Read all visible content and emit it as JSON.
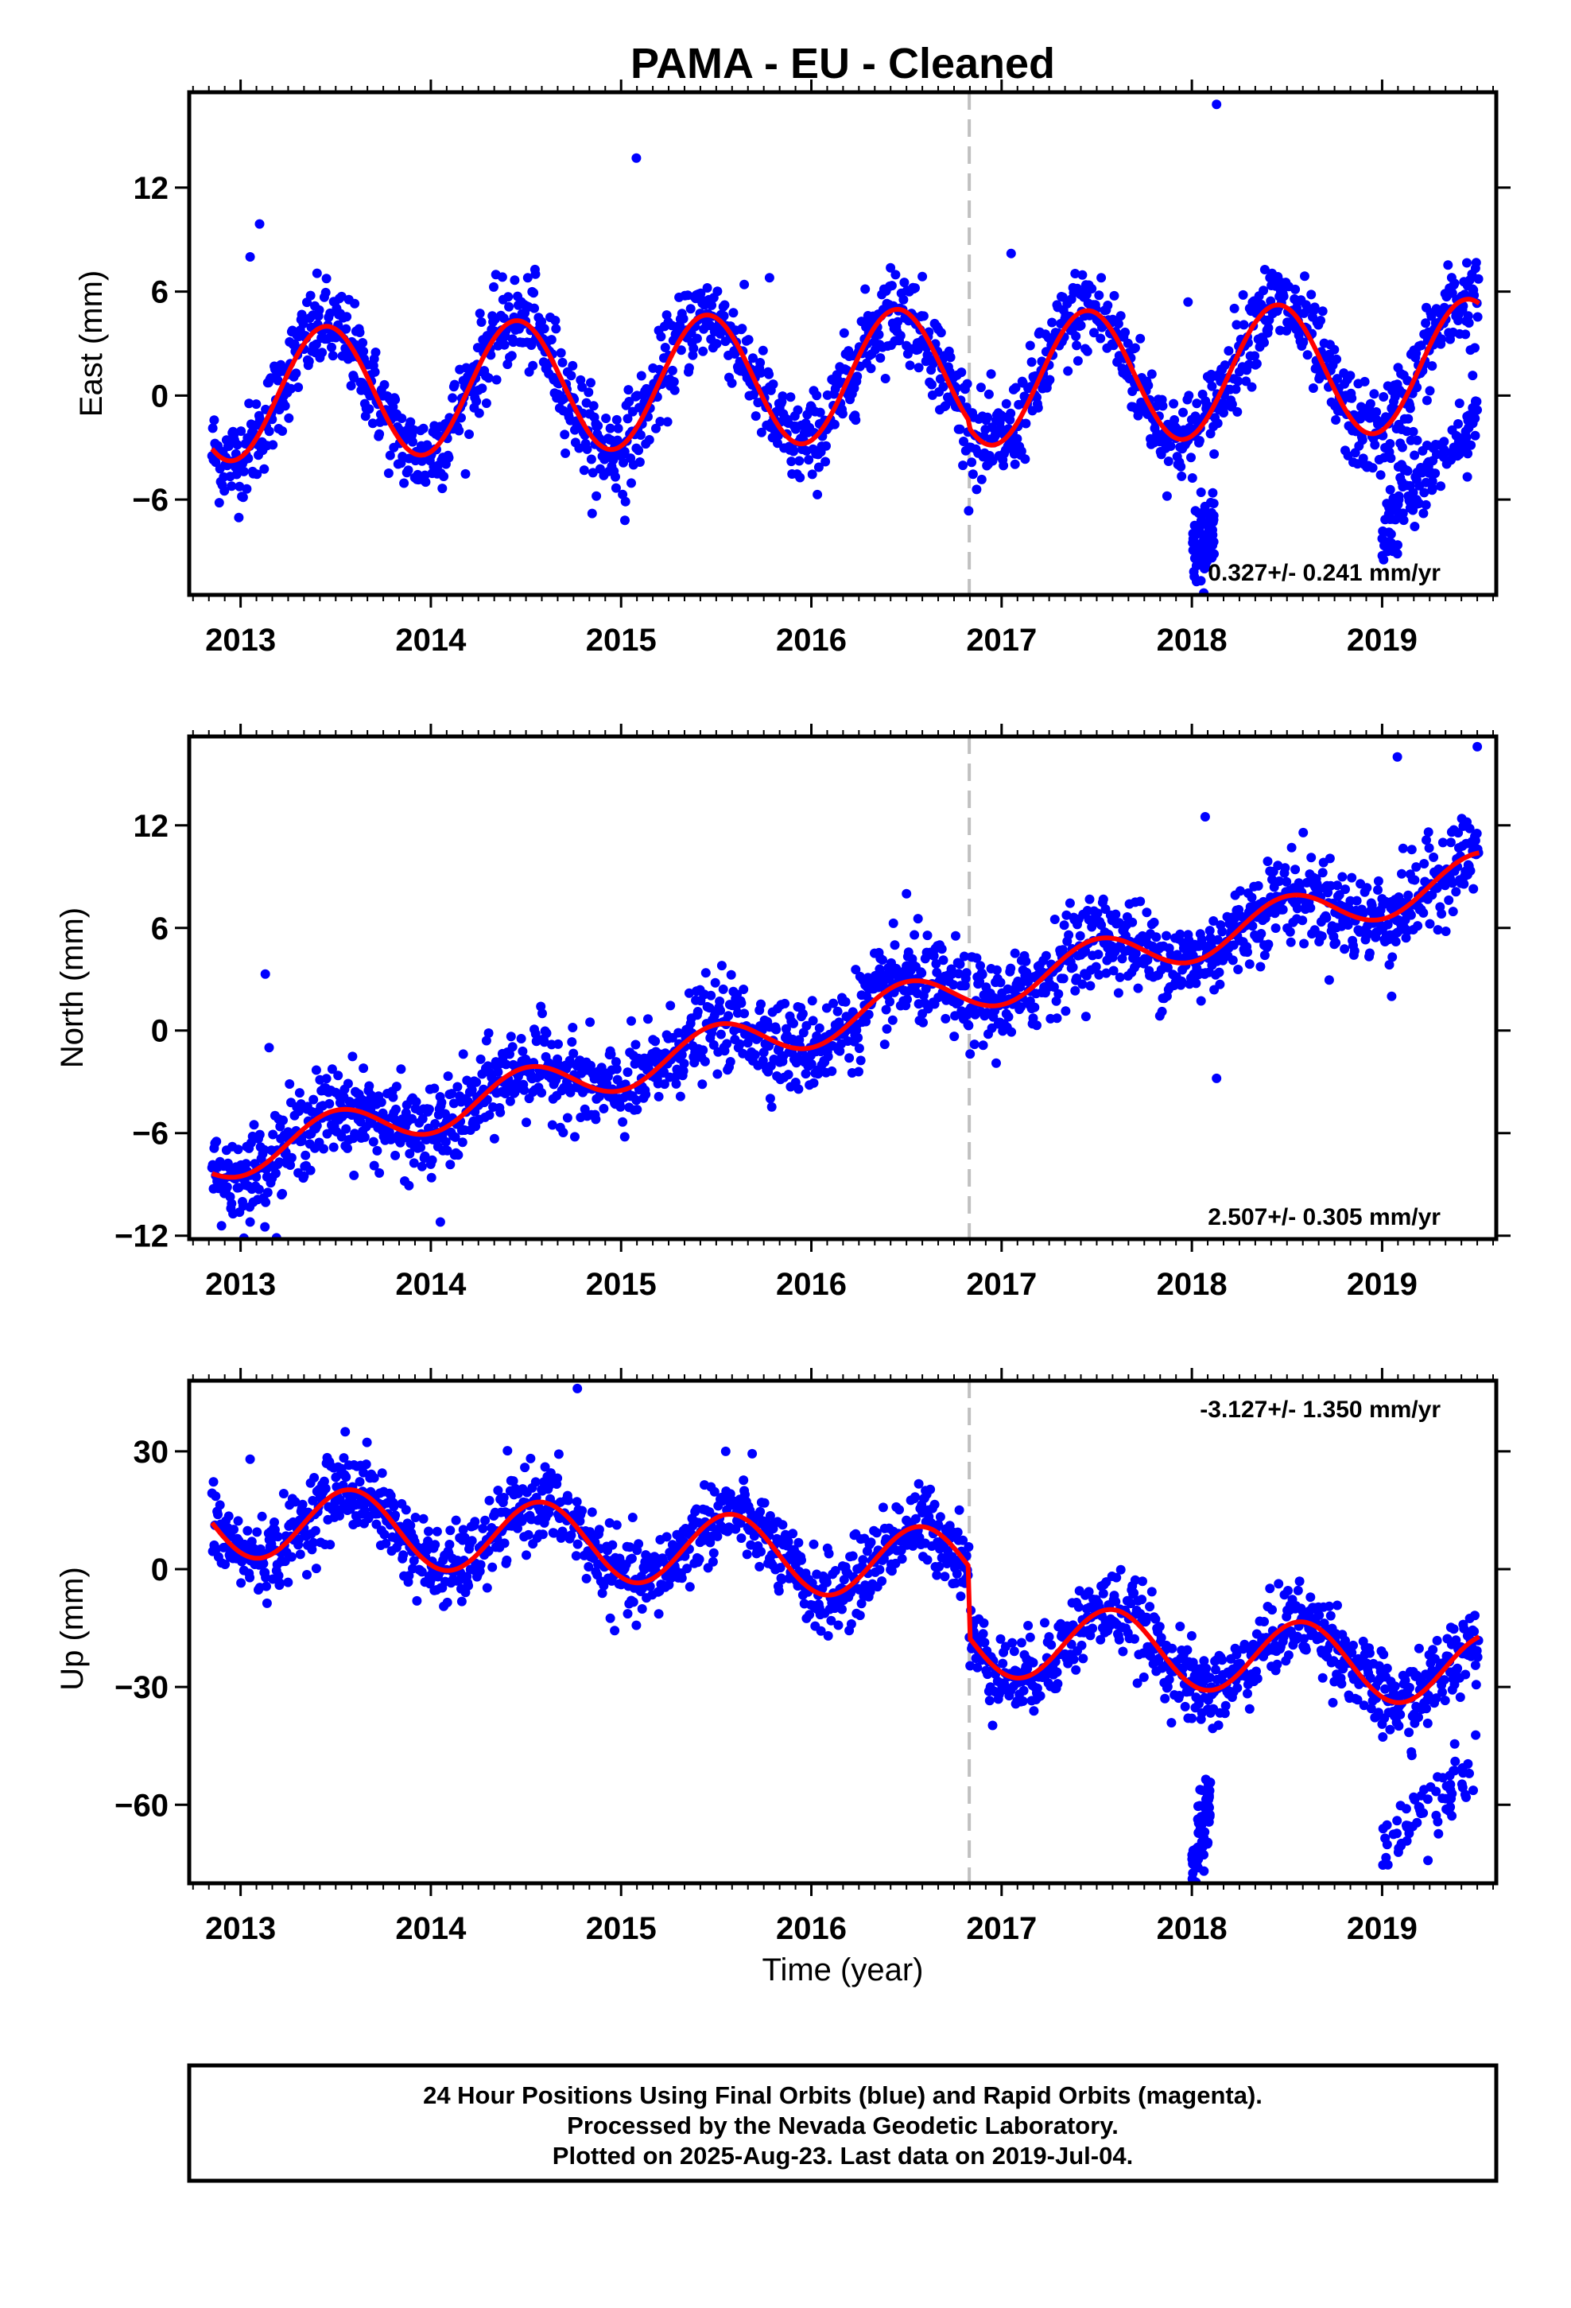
{
  "title": "PAMA  - EU - Cleaned",
  "x_axis_label": "Time (year)",
  "x_ticks": [
    "2013",
    "2014",
    "2015",
    "2016",
    "2017",
    "2018",
    "2019"
  ],
  "footer": {
    "line1": "24 Hour Positions Using Final Orbits (blue) and Rapid Orbits (magenta).",
    "line2": "Processed by the Nevada Geodetic Laboratory.",
    "line3": "Plotted on 2025-Aug-23. Last data on 2019-Jul-04."
  },
  "colors": {
    "points": "#0000ff",
    "model": "#ff0000",
    "dashed_marker": "#c0c0c0",
    "frame": "#000000"
  },
  "chart_data": [
    {
      "type": "scatter",
      "component": "East",
      "ylabel": "East (mm)",
      "xlim": [
        2012.73,
        2019.6
      ],
      "ylim": [
        -11.5,
        17.5
      ],
      "yticks": [
        -6,
        0,
        6,
        12
      ],
      "rate_label": "0.327+/- 0.241 mm/yr",
      "rate_position": "bottom-right",
      "vertical_marker_year": 2016.83,
      "model": {
        "offset": 0,
        "trend": 0.327,
        "annual_amp": 3.8,
        "annual_peak": 0.45,
        "semiannual_amp": 0,
        "step_at": 2016.83,
        "step": -0.4
      },
      "scatter_noise": 1.3,
      "outliers": [
        [
          2013.1,
          9.9
        ],
        [
          2013.05,
          8.0
        ],
        [
          2015.08,
          13.7
        ],
        [
          2017.05,
          8.2
        ],
        [
          2018.13,
          16.8
        ],
        [
          2017.98,
          5.4
        ],
        [
          2014.55,
          7.0
        ],
        [
          2015.02,
          -7.2
        ],
        [
          2015.78,
          6.8
        ],
        [
          2014.87,
          -5.8
        ]
      ],
      "offset_clusters": [
        {
          "x": [
            2018.0,
            2018.12
          ],
          "y": [
            -9.0,
            -8.0
          ],
          "spread": 1.2
        },
        {
          "x": [
            2019.0,
            2019.2
          ],
          "y": [
            -8.0,
            -5.0
          ],
          "spread": 1.2
        },
        {
          "x": [
            2019.2,
            2019.5
          ],
          "y": [
            -5.0,
            -1.0
          ],
          "spread": 1.0
        }
      ]
    },
    {
      "type": "scatter",
      "component": "North",
      "ylabel": "North (mm)",
      "xlim": [
        2012.73,
        2019.6
      ],
      "ylim": [
        -12.2,
        17.2
      ],
      "yticks": [
        -12,
        -6,
        0,
        6,
        12
      ],
      "rate_label": "2.507+/- 0.305 mm/yr",
      "rate_position": "bottom-right",
      "vertical_marker_year": 2016.83,
      "model": {
        "offset": -7.6,
        "trend": 2.507,
        "annual_amp": 1.3,
        "annual_peak": 0.5,
        "semiannual_amp": 0,
        "step_at": 2016.83,
        "step": 0
      },
      "scatter_noise": 1.3,
      "outliers": [
        [
          2013.13,
          3.3
        ],
        [
          2013.15,
          -1.0
        ],
        [
          2014.05,
          -11.2
        ],
        [
          2016.5,
          8.0
        ],
        [
          2018.13,
          -2.8
        ],
        [
          2019.05,
          2.0
        ],
        [
          2019.08,
          16.0
        ],
        [
          2019.5,
          16.6
        ],
        [
          2018.07,
          12.5
        ],
        [
          2013.05,
          -11.2
        ]
      ],
      "offset_clusters": []
    },
    {
      "type": "scatter",
      "component": "Up",
      "ylabel": "Up (mm)",
      "xlim": [
        2012.73,
        2019.6
      ],
      "ylim": [
        -80,
        48
      ],
      "yticks": [
        -60,
        -30,
        0,
        30
      ],
      "rate_label": "-3.127+/- 1.350 mm/yr",
      "rate_position": "top-right",
      "vertical_marker_year": 2016.83,
      "model": {
        "offset": 13,
        "trend": -3.127,
        "annual_amp": 9.5,
        "annual_peak": 0.58,
        "semiannual_amp": 0,
        "step_at": 2016.83,
        "step": -18
      },
      "scatter_noise": 5.0,
      "outliers": [
        [
          2014.77,
          46.0
        ],
        [
          2013.55,
          35.0
        ],
        [
          2013.05,
          28.0
        ],
        [
          2015.55,
          30.0
        ],
        [
          2018.0,
          -38.0
        ],
        [
          2016.6,
          20.0
        ]
      ],
      "offset_clusters": [
        {
          "x": [
            2018.0,
            2018.1
          ],
          "y": [
            -78.0,
            -56.0
          ],
          "spread": 5.0
        },
        {
          "x": [
            2019.0,
            2019.5
          ],
          "y": [
            -68.0,
            -52.0
          ],
          "spread": 5.0
        }
      ]
    }
  ]
}
